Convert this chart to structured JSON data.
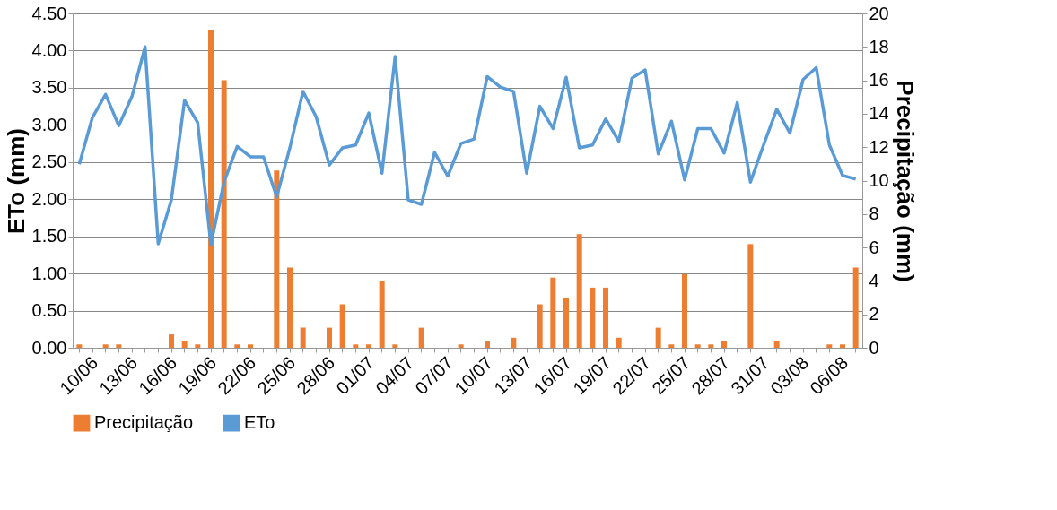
{
  "chart_data": {
    "type": "bar",
    "xlabel": null,
    "categories": [
      "10/06",
      null,
      null,
      "13/06",
      null,
      null,
      "16/06",
      null,
      null,
      "19/06",
      null,
      null,
      "22/06",
      null,
      null,
      "25/06",
      null,
      null,
      "28/06",
      null,
      null,
      "01/07",
      null,
      null,
      "04/07",
      null,
      null,
      "07/07",
      null,
      null,
      "10/07",
      null,
      null,
      "13/07",
      null,
      null,
      "16/07",
      null,
      null,
      "19/07",
      null,
      null,
      "22/07",
      null,
      null,
      "25/07",
      null,
      null,
      "28/07",
      null,
      null,
      "31/07",
      null,
      null,
      "03/08",
      null,
      null,
      "06/08",
      null,
      null
    ],
    "series": [
      {
        "name": "Precipitação",
        "axis": "y2",
        "color": "#ed7d31",
        "values": [
          0.2,
          0,
          0.2,
          0.2,
          0,
          0,
          0,
          0.8,
          0.4,
          0.2,
          19.0,
          16.0,
          0.2,
          0.2,
          0,
          10.6,
          4.8,
          1.2,
          0,
          1.2,
          2.6,
          0.2,
          0.2,
          4.0,
          0.2,
          0,
          1.2,
          0,
          0,
          0.2,
          0,
          0.4,
          0,
          0.6,
          0,
          2.6,
          4.2,
          3.0,
          6.8,
          3.6,
          3.6,
          0.6,
          0,
          0,
          1.2,
          0.2,
          4.4,
          0.2,
          0.2,
          0.4,
          0,
          6.2,
          0,
          0.4,
          0,
          0,
          0,
          0.2,
          0.2,
          4.8
        ]
      },
      {
        "name": "ETo",
        "type": "line",
        "axis": "y",
        "color": "#5b9bd5",
        "values": [
          2.47,
          3.1,
          3.41,
          2.99,
          3.38,
          4.05,
          1.4,
          1.99,
          3.33,
          3.03,
          1.39,
          2.23,
          2.71,
          2.57,
          2.57,
          2.03,
          2.69,
          3.45,
          3.11,
          2.46,
          2.69,
          2.73,
          3.16,
          2.35,
          3.92,
          1.99,
          1.93,
          2.63,
          2.31,
          2.75,
          2.81,
          3.65,
          3.51,
          3.45,
          2.35,
          3.25,
          2.95,
          3.64,
          2.69,
          2.73,
          3.08,
          2.78,
          3.63,
          3.74,
          2.61,
          3.05,
          2.26,
          2.95,
          2.95,
          2.62,
          3.3,
          2.23,
          2.73,
          3.21,
          2.89,
          3.61,
          3.77,
          2.73,
          2.32,
          2.27
        ]
      }
    ],
    "ylabel": "ETo (mm)",
    "y2label": "Precipitação (mm)",
    "ylim": [
      0,
      4.5
    ],
    "yticks": [
      {
        "value": 0,
        "label": "0.00"
      },
      {
        "value": 0.5,
        "label": "0.50"
      },
      {
        "value": 1,
        "label": "1.00"
      },
      {
        "value": 1.5,
        "label": "1.50"
      },
      {
        "value": 2,
        "label": "2.00"
      },
      {
        "value": 2.5,
        "label": "2.50"
      },
      {
        "value": 3,
        "label": "3.00"
      },
      {
        "value": 3.5,
        "label": "3.50"
      },
      {
        "value": 4,
        "label": "4.00"
      },
      {
        "value": 4.5,
        "label": "4.50"
      }
    ],
    "y2lim": [
      0,
      20
    ],
    "y2ticks": [
      0,
      2,
      4,
      6,
      8,
      10,
      12,
      14,
      16,
      18,
      20
    ],
    "grid": "y",
    "legend": "bottom"
  }
}
